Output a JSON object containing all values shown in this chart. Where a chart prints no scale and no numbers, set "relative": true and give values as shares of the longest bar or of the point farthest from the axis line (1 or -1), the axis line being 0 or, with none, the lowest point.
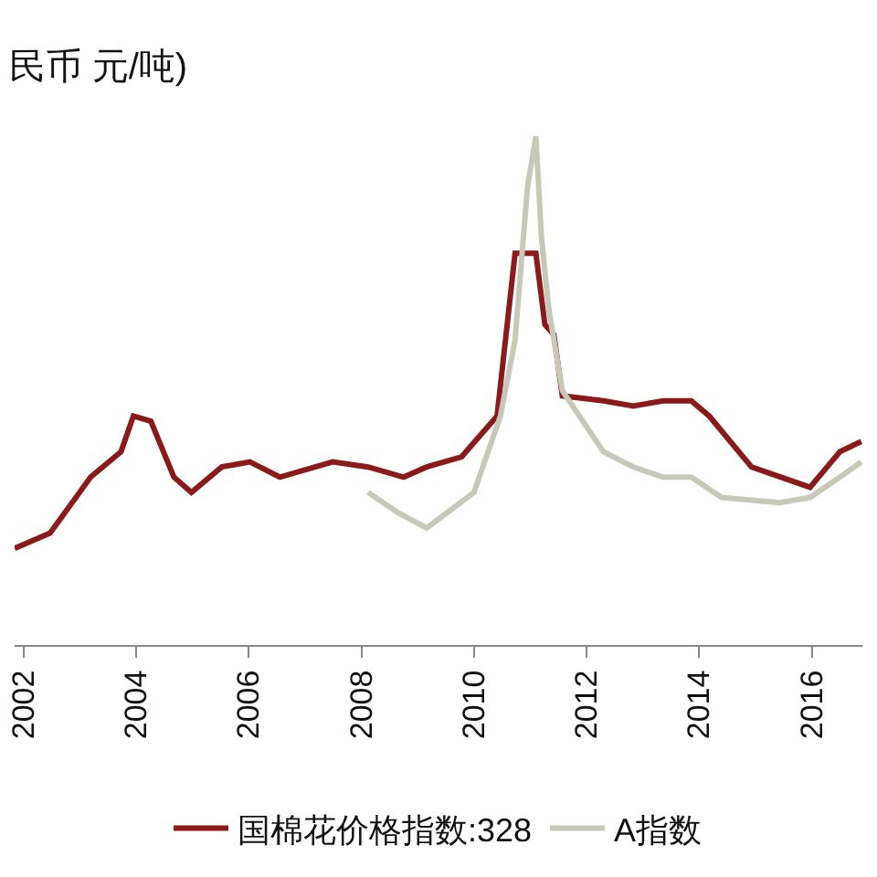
{
  "chart_data": {
    "type": "line",
    "title": "民币 元/吨)",
    "relative": true,
    "xlim": [
      2001.84,
      2016.9
    ],
    "xticks": [
      2002,
      2004,
      2006,
      2008,
      2010,
      2012,
      2014,
      2016
    ],
    "legend": "bottom",
    "grid": false,
    "series": [
      {
        "name": "国棉花价格指数:328",
        "color": "#8b1a1a",
        "x": [
          2001.84,
          2002.47,
          2003.19,
          2003.73,
          2003.95,
          2004.26,
          2004.67,
          2004.98,
          2005.52,
          2006.02,
          2006.55,
          2007.49,
          2008.12,
          2008.75,
          2009.16,
          2009.78,
          2010.41,
          2010.73,
          2011.1,
          2011.26,
          2011.42,
          2011.57,
          2012.3,
          2012.83,
          2013.36,
          2013.86,
          2014.18,
          2014.93,
          2015.97,
          2016.5,
          2016.88
        ],
        "values": [
          0.19,
          0.22,
          0.33,
          0.38,
          0.45,
          0.44,
          0.33,
          0.3,
          0.35,
          0.36,
          0.33,
          0.36,
          0.35,
          0.33,
          0.35,
          0.37,
          0.45,
          0.77,
          0.77,
          0.63,
          0.61,
          0.49,
          0.48,
          0.47,
          0.48,
          0.48,
          0.45,
          0.35,
          0.31,
          0.38,
          0.4
        ]
      },
      {
        "name": "A指数",
        "color": "#c8c8b8",
        "x": [
          2008.12,
          2008.65,
          2009.16,
          2010.0,
          2010.47,
          2010.73,
          2010.95,
          2011.1,
          2011.2,
          2011.33,
          2011.57,
          2012.3,
          2012.83,
          2013.36,
          2013.86,
          2014.4,
          2015.43,
          2015.97,
          2016.5,
          2016.88
        ],
        "values": [
          0.3,
          0.26,
          0.23,
          0.3,
          0.45,
          0.6,
          0.9,
          1,
          0.8,
          0.66,
          0.5,
          0.38,
          0.35,
          0.33,
          0.33,
          0.29,
          0.28,
          0.29,
          0.33,
          0.36
        ]
      }
    ]
  }
}
